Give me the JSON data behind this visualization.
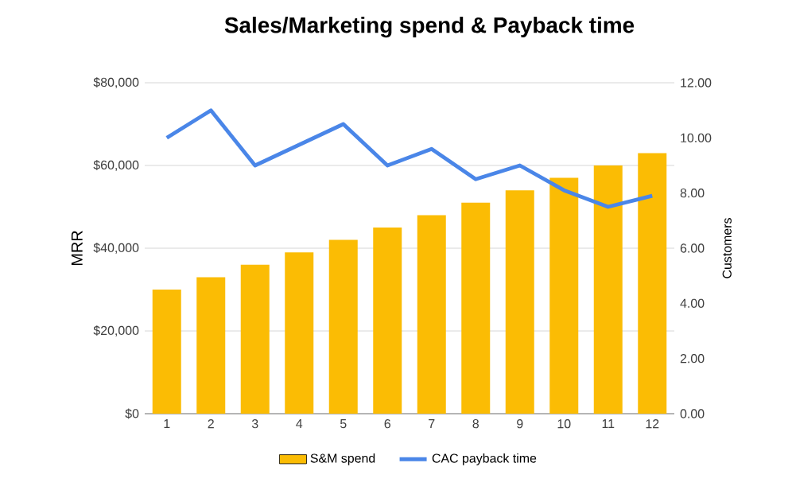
{
  "chart_data": {
    "type": "bar",
    "title": "Sales/Marketing spend & Payback time",
    "categories": [
      "1",
      "2",
      "3",
      "4",
      "5",
      "6",
      "7",
      "8",
      "9",
      "10",
      "11",
      "12"
    ],
    "series": [
      {
        "name": "S&M spend",
        "color": "#fbbc04",
        "values": [
          30000,
          33000,
          36000,
          39000,
          42000,
          45000,
          48000,
          51000,
          54000,
          57000,
          60000,
          63000
        ]
      },
      {
        "name": "CAC payback time",
        "type": "line",
        "axis": "y2",
        "color": "#4a86e8",
        "values": [
          10.0,
          11.0,
          9.0,
          9.75,
          10.5,
          9.0,
          9.6,
          8.5,
          9.0,
          8.1,
          7.5,
          7.9
        ]
      }
    ],
    "ylabel": "MRR",
    "y2label": "Customers",
    "ylim": [
      0,
      80000
    ],
    "yticks": [
      {
        "value": 0,
        "label": "$0"
      },
      {
        "value": 20000,
        "label": "$20,000"
      },
      {
        "value": 40000,
        "label": "$40,000"
      },
      {
        "value": 60000,
        "label": "$60,000"
      },
      {
        "value": 80000,
        "label": "$80,000"
      }
    ],
    "y2lim": [
      0,
      12
    ],
    "y2ticks": [
      {
        "value": 0,
        "label": "0.00"
      },
      {
        "value": 2,
        "label": "2.00"
      },
      {
        "value": 4,
        "label": "4.00"
      },
      {
        "value": 6,
        "label": "6.00"
      },
      {
        "value": 8,
        "label": "8.00"
      },
      {
        "value": 10,
        "label": "10.00"
      },
      {
        "value": 12,
        "label": "12.00"
      }
    ],
    "grid": "y",
    "legend": "bottom",
    "marker": "none",
    "line_style": "solid"
  }
}
